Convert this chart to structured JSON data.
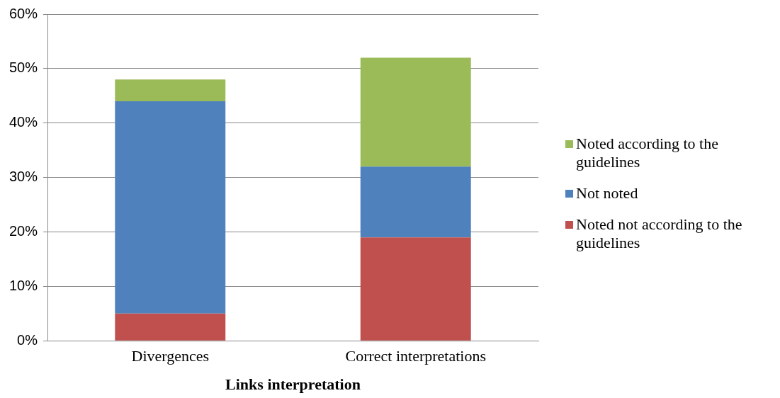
{
  "chart_data": {
    "type": "bar",
    "xlabel": "Links interpretation",
    "categories": [
      "Divergences",
      "Correct interpretations"
    ],
    "series": [
      {
        "name": "Noted not according to the guidelines",
        "color": "#c0504d",
        "values": [
          5,
          19
        ]
      },
      {
        "name": "Not noted",
        "color": "#4f81bd",
        "values": [
          39,
          13
        ]
      },
      {
        "name": "Noted according to the guidelines",
        "color": "#9bbb59",
        "values": [
          4,
          20
        ]
      }
    ],
    "stacked": true,
    "ylim": [
      0,
      60
    ],
    "yticks": [
      {
        "value": 0,
        "label": "0%"
      },
      {
        "value": 10,
        "label": "10%"
      },
      {
        "value": 20,
        "label": "20%"
      },
      {
        "value": 30,
        "label": "30%"
      },
      {
        "value": 40,
        "label": "40%"
      },
      {
        "value": 50,
        "label": "50%"
      },
      {
        "value": 60,
        "label": "60%"
      }
    ],
    "grid": "y",
    "legend": "right"
  }
}
